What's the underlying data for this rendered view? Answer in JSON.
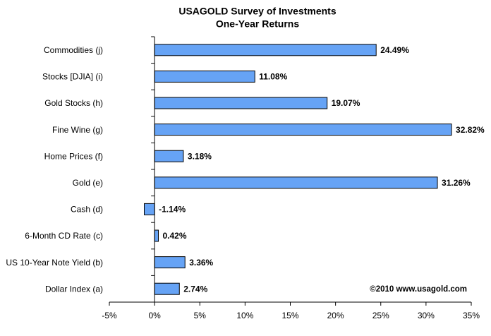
{
  "chart_data": {
    "type": "barh",
    "title": "USAGOLD Survey of Investments",
    "subtitle": "One-Year Returns",
    "categories": [
      "Commodities (j)",
      "Stocks [DJIA] (i)",
      "Gold Stocks (h)",
      "Fine Wine (g)",
      "Home Prices (f)",
      "Gold (e)",
      "Cash (d)",
      "6-Month CD Rate (c)",
      "US 10-Year Note Yield (b)",
      "Dollar Index (a)"
    ],
    "values": [
      24.49,
      11.08,
      19.07,
      32.82,
      3.18,
      31.26,
      -1.14,
      0.42,
      3.36,
      2.74
    ],
    "value_labels": [
      "24.49%",
      "11.08%",
      "19.07%",
      "32.82%",
      "3.18%",
      "31.26%",
      "-1.14%",
      "0.42%",
      "3.36%",
      "2.74%"
    ],
    "color": "#66a3f5",
    "xlim": [
      -5,
      35
    ],
    "xticks": [
      {
        "value": -5,
        "label": "-5%"
      },
      {
        "value": 0,
        "label": "0%"
      },
      {
        "value": 5,
        "label": "5%"
      },
      {
        "value": 10,
        "label": "10%"
      },
      {
        "value": 15,
        "label": "15%"
      },
      {
        "value": 20,
        "label": "20%"
      },
      {
        "value": 25,
        "label": "25%"
      },
      {
        "value": 30,
        "label": "30%"
      },
      {
        "value": 35,
        "label": "35%"
      }
    ],
    "annotation": "©2010 www.usagold.com",
    "grid": false
  }
}
